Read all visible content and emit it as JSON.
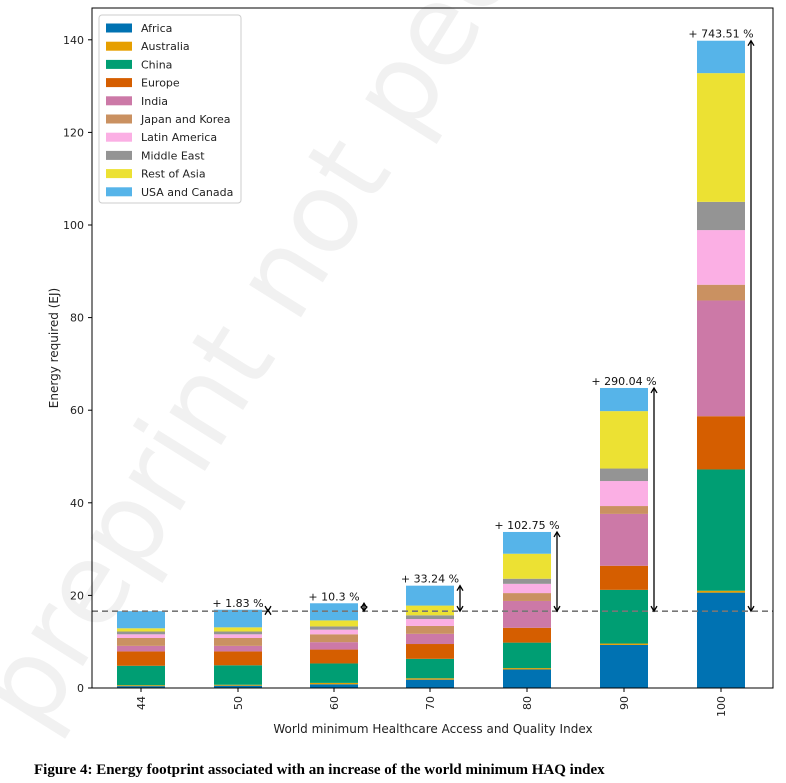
{
  "caption": "Figure 4: Energy footprint associated with an increase of the world minimum HAQ index",
  "watermark": "preprint not peer reviewed",
  "chart_data": {
    "type": "bar",
    "stacked": true,
    "title": "",
    "xlabel": "World minimum Healthcare Access and Quality Index",
    "ylabel": "Energy required (EJ)",
    "ylim": [
      0,
      145
    ],
    "yticks": [
      0,
      20,
      40,
      60,
      80,
      100,
      120,
      140
    ],
    "grid": false,
    "legend_position": "top-left",
    "categories": [
      "44",
      "50",
      "60",
      "70",
      "80",
      "90",
      "100"
    ],
    "series": [
      {
        "name": "Africa",
        "color": "#0072b2",
        "values": [
          0.4,
          0.5,
          0.8,
          1.8,
          4.0,
          9.3,
          20.6
        ]
      },
      {
        "name": "Australia",
        "color": "#e69f00",
        "values": [
          0.2,
          0.2,
          0.3,
          0.3,
          0.3,
          0.3,
          0.4
        ]
      },
      {
        "name": "China",
        "color": "#009e73",
        "values": [
          4.2,
          4.2,
          4.2,
          4.2,
          5.5,
          11.6,
          26.2
        ]
      },
      {
        "name": "Europe",
        "color": "#d55e00",
        "values": [
          3.1,
          3.0,
          3.0,
          3.2,
          3.2,
          5.2,
          11.5
        ]
      },
      {
        "name": "India",
        "color": "#cc79a7",
        "values": [
          1.2,
          1.2,
          1.6,
          2.2,
          5.8,
          11.2,
          25.0
        ]
      },
      {
        "name": "Japan and Korea",
        "color": "#ca9161",
        "values": [
          1.7,
          1.7,
          1.7,
          1.7,
          1.7,
          1.7,
          3.4
        ]
      },
      {
        "name": "Latin America",
        "color": "#fbafe4",
        "values": [
          0.8,
          0.8,
          1.0,
          1.5,
          2.0,
          5.4,
          11.8
        ]
      },
      {
        "name": "Middle East",
        "color": "#949494",
        "values": [
          0.6,
          0.6,
          0.7,
          0.8,
          1.1,
          2.7,
          6.1
        ]
      },
      {
        "name": "Rest of Asia",
        "color": "#ece133",
        "values": [
          0.7,
          0.9,
          1.3,
          2.1,
          5.4,
          12.4,
          27.8
        ]
      },
      {
        "name": "USA and Canada",
        "color": "#56b4e9",
        "values": [
          3.7,
          3.8,
          3.7,
          4.3,
          4.7,
          5.0,
          7.0
        ]
      }
    ],
    "baseline": 16.6,
    "annotations": [
      {
        "category": "50",
        "label": "+ 1.83 %",
        "total": 16.9
      },
      {
        "category": "60",
        "label": "+ 10.3 %",
        "total": 18.3
      },
      {
        "category": "70",
        "label": "+ 33.24 %",
        "total": 22.1
      },
      {
        "category": "80",
        "label": "+ 102.75 %",
        "total": 33.7
      },
      {
        "category": "90",
        "label": "+ 290.04 %",
        "total": 64.8
      },
      {
        "category": "100",
        "label": "+ 743.51 %",
        "total": 139.8
      }
    ]
  }
}
